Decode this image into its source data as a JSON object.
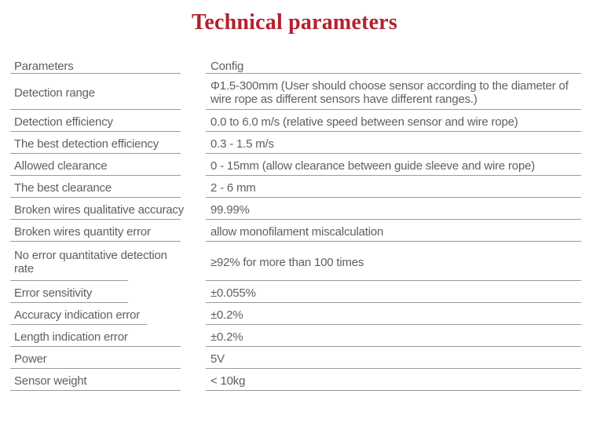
{
  "title": "Technical parameters",
  "colors": {
    "title": "#b4202c",
    "text": "#5f5f5f",
    "line": "#9a9a9a"
  },
  "table": {
    "header": {
      "param": "Parameters",
      "config": "Config"
    },
    "rows": [
      {
        "param": "Detection range",
        "config": "Φ1.5-300mm (User should choose sensor according to the diameter of wire rope as different sensors have different ranges.)"
      },
      {
        "param": "Detection efficiency",
        "config": "0.0 to 6.0 m/s (relative speed between sensor and wire rope)"
      },
      {
        "param": "The best detection efficiency",
        "config": "0.3 - 1.5 m/s"
      },
      {
        "param": "Allowed clearance",
        "config": "0 - 15mm (allow clearance between guide sleeve and wire rope)"
      },
      {
        "param": "The best clearance",
        "config": "2 - 6 mm"
      },
      {
        "param": "Broken wires qualitative accuracy",
        "config": "99.99%"
      },
      {
        "param": "Broken wires quantity error",
        "config": "allow monofilament miscalculation"
      },
      {
        "param": "No error quantitative detection rate",
        "config": "≥92% for more than 100 times"
      },
      {
        "param": "Error sensitivity",
        "config": "±0.055%"
      },
      {
        "param": "Accuracy indication error",
        "config": "±0.2%"
      },
      {
        "param": "Length indication error",
        "config": "±0.2%"
      },
      {
        "param": "Power",
        "config": "5V"
      },
      {
        "param": "Sensor weight",
        "config": "< 10kg"
      }
    ]
  }
}
